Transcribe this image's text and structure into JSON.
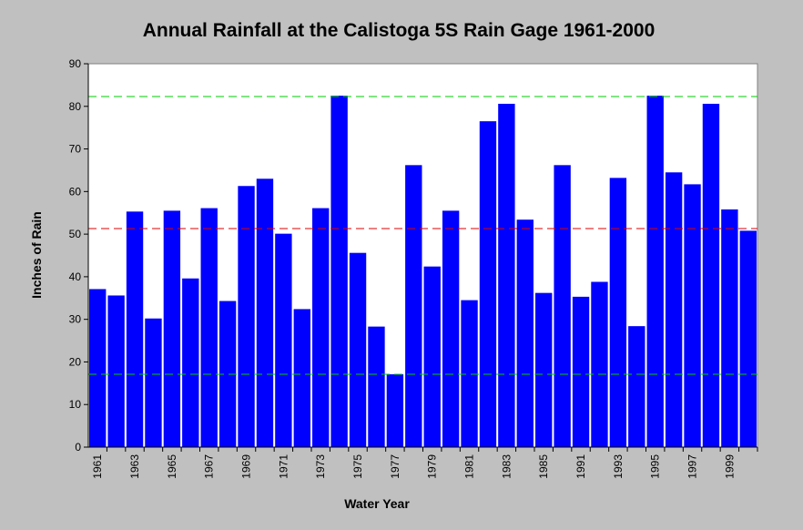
{
  "chart_data": {
    "type": "bar",
    "title": "Annual Rainfall at the Calistoga 5S Rain Gage 1961-2000",
    "x_label": "Water Year",
    "y_label": "Inches of Rain",
    "categories": [
      "1961",
      null,
      "1963",
      null,
      "1965",
      null,
      "1967",
      null,
      "1969",
      null,
      "1971",
      null,
      "1973",
      null,
      "1975",
      null,
      "1977",
      null,
      "1979",
      null,
      "1981",
      null,
      "1983",
      null,
      "1985",
      null,
      "1991",
      null,
      "1993",
      null,
      "1995",
      null,
      "1997",
      null,
      "1999",
      null
    ],
    "values": [
      37.1,
      35.6,
      55.3,
      30.2,
      55.5,
      39.6,
      56.1,
      34.3,
      61.3,
      63.0,
      50.1,
      32.4,
      56.1,
      82.5,
      45.6,
      28.3,
      17.1,
      66.2,
      42.4,
      55.5,
      34.5,
      76.5,
      80.6,
      53.4,
      36.2,
      66.2,
      35.3,
      38.8,
      63.2,
      28.4,
      82.5,
      64.5,
      61.7,
      80.6,
      55.8,
      50.8
    ],
    "color": "#0000ff",
    "ylim": [
      0,
      90
    ],
    "yticks": [
      0,
      10,
      20,
      30,
      40,
      50,
      60,
      70,
      80,
      90
    ],
    "reference_lines": [
      {
        "value": 82.3,
        "color": "#00cc00"
      },
      {
        "value": 51.3,
        "color": "#dd0000"
      },
      {
        "value": 17.1,
        "color": "#00cc00"
      }
    ]
  }
}
